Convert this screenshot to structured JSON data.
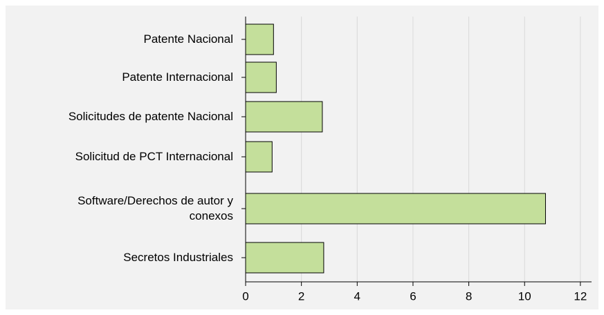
{
  "chart_data": {
    "type": "bar",
    "orientation": "horizontal",
    "categories": [
      "Patente Nacional",
      "Patente Internacional",
      "Solicitudes de patente Nacional",
      "Solicitud de PCT Internacional",
      "Software/Derechos de autor y conexos",
      "Secretos Industriales"
    ],
    "values": [
      1.0,
      1.1,
      2.75,
      0.95,
      10.75,
      2.8
    ],
    "color": "#c4df9b",
    "xlim": [
      0,
      12.4
    ],
    "xticks": [
      0,
      2,
      4,
      6,
      8,
      10,
      12
    ],
    "grid": true
  }
}
